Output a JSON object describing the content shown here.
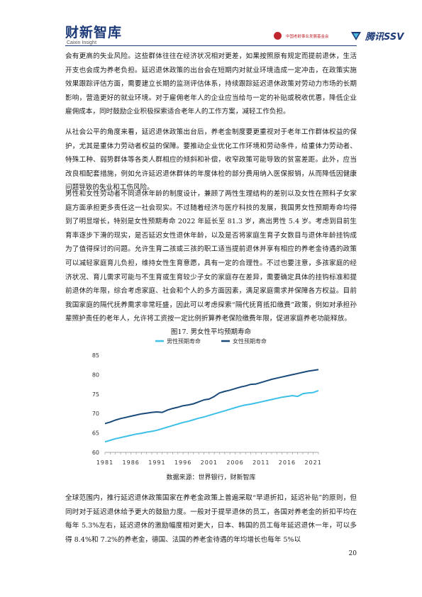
{
  "header": {
    "logo_cn": "财新智库",
    "logo_en": "Caixin Insight",
    "partner_text": "中国老龄事业发展基金会",
    "ssv_text": "腾讯SSV"
  },
  "paragraphs": [
    "会有更高的失业风险。这些群体往往在经济状况相对更差，如果按照原有规定而提前退休，生活开支也会成为养老负担。延迟退休政策的出台会在短期内对就业环境造成一定冲击，在政策实施效果跟踪评估方面，需要建立长期的监测评估体系，持续跟踪延迟退休政策对劳动力市场的长期影响，营造更好的就业环境。对于雇佣老年人的企业应当给与一定的补贴或税收优惠，降低企业雇佣成本，同时鼓励企业积极探索适合老年人的工作方案，减轻工作负担。",
    "从社会公平的角度来看，延迟退休政策出台后，养老金制度要更重视对于老年工作群体权益的保护，尤其是重体力劳动者权益的保障。要推动企业优化工作环境和劳动条件，给重体力劳动者、特殊工种、弱势群体等各类人群相应的倾斜和补偿，收窄政策可能导致的贫富差距。此外，应当改良相配套措施，例如允许延迟退休群体的年度体检的部分费用纳入医保报销，从而降低因健康问题导致的失业和工伤风险。",
    "男性和女性劳动者不同退休年龄的制度设计，兼顾了两性生理结构的差别以及女性在照料子女家庭方面承担更多责任这一社会现实。不过随着经济与医疗科技的发展，我国男女性预期寿命均得到了明显增长，特别是女性预期寿命 2022 年延长至 81.3 岁，高出男性 5.4 岁。考虑到目前生育率逐步下滑的现实，是否延迟女性退休年龄，以及是否将家庭生育子女数目与退休年龄挂钩成为了值得探讨的问题。允许生育二孩或三孩的职工适当提前退休并享有相应的养老金待遇的政策可以减轻家庭育儿负担，维持女性生育意愿，具有一定的合理性。不过也要注意，多孩家庭的经济状况、育儿需求可能与不生育或生育较少子女的家庭存在差异，需要确定具体的挂钩标准和提前退休的年限，综合考虑家庭、社会和个人的多方面因素，满足家庭需求并保障各方权益。目前我国家庭的隔代抚养需求非常旺盛，因此可以考虑探索“隔代抚育抵扣缴费”政策，例如对承担孙辈照护责任的老年人，允许将工资按一定比例折算养老保险缴费年限，促进家庭养老功能释放。",
    "全球范围内，推行延迟退休政策国家在养老金政策上普遍采取“早退折扣，延迟补贴”的原则，但同时对于延迟退休给予更大的鼓励力度。一般对于提早退休的员工，各国对养老金的折扣平均在每年 5.3%左右，延迟退休的激励幅度相对更大，日本、韩国的员工每年延迟退休一年，可以多得 8.4%和 7.2%的养老金，德国、法国的养老金待遇的年均增长也每年 5%以"
  ],
  "figure": {
    "title": "图17. 男女性平均预期寿命",
    "source": "数据来源：世界银行，财新智库"
  },
  "chart_data": {
    "type": "line",
    "title": "图17. 男女性平均预期寿命",
    "xlabel": "",
    "ylabel": "",
    "ylim": [
      60,
      85
    ],
    "yticks": [
      "60",
      "65",
      "70",
      "75",
      "80",
      "85"
    ],
    "xticks": [
      "1981",
      "1986",
      "1991",
      "1996",
      "2001",
      "2006",
      "2011",
      "2016",
      "2021"
    ],
    "grid": false,
    "legend": "top",
    "x": [
      1981,
      1982,
      1983,
      1984,
      1985,
      1986,
      1987,
      1988,
      1989,
      1990,
      1991,
      1992,
      1993,
      1994,
      1995,
      1996,
      1997,
      1998,
      1999,
      2000,
      2001,
      2002,
      2003,
      2004,
      2005,
      2006,
      2007,
      2008,
      2009,
      2010,
      2011,
      2012,
      2013,
      2014,
      2015,
      2016,
      2017,
      2018,
      2019,
      2020,
      2021,
      2022
    ],
    "series": [
      {
        "name": "男性预期寿命",
        "color": "#3cc0e8",
        "values": [
          62.7,
          63.1,
          63.5,
          63.8,
          64.1,
          64.4,
          64.7,
          64.9,
          65.2,
          65.4,
          65.7,
          66.1,
          66.5,
          66.9,
          67.3,
          67.7,
          68.0,
          68.4,
          68.8,
          69.1,
          69.5,
          69.9,
          70.3,
          70.7,
          71.1,
          71.5,
          71.9,
          72.2,
          72.4,
          72.7,
          73.0,
          73.3,
          73.6,
          73.9,
          74.2,
          74.4,
          74.6,
          74.4,
          75.1,
          75.3,
          75.4,
          75.9
        ]
      },
      {
        "name": "女性预期寿命",
        "color": "#1a4a7a",
        "values": [
          67.4,
          67.8,
          68.3,
          68.7,
          69.0,
          69.3,
          69.6,
          69.9,
          70.1,
          70.3,
          70.4,
          70.3,
          70.9,
          71.3,
          71.6,
          72.0,
          72.2,
          72.5,
          73.0,
          73.5,
          73.7,
          74.4,
          75.3,
          75.7,
          76.0,
          76.4,
          76.8,
          77.1,
          77.5,
          77.6,
          78.0,
          78.4,
          78.8,
          79.1,
          79.4,
          79.7,
          80.0,
          80.3,
          80.6,
          80.9,
          81.1,
          81.3
        ]
      }
    ]
  },
  "page_number": "20"
}
